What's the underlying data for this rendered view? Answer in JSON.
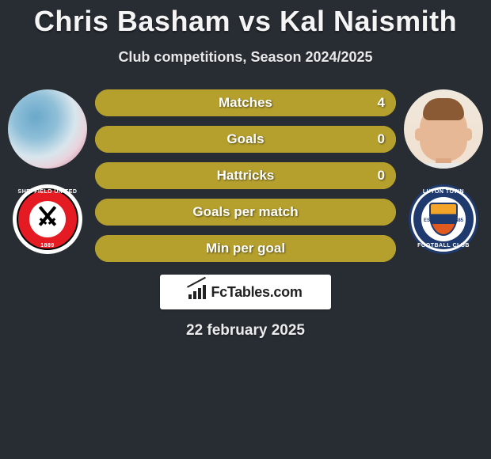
{
  "title": "Chris Basham vs Kal Naismith",
  "subtitle": "Club competitions, Season 2024/2025",
  "date": "22 february 2025",
  "brand": "FcTables.com",
  "colors": {
    "background": "#282d33",
    "bar": "#b5a02e",
    "text": "#ffffff"
  },
  "left": {
    "player_name": "Chris Basham",
    "club_name_top": "SHEFFIELD UNITED",
    "club_name_bottom": "1889",
    "club_colors": {
      "outer": "#ffffff",
      "ring": "#e41b23",
      "inner": "#ffffff",
      "accent": "#000000"
    }
  },
  "right": {
    "player_name": "Kal Naismith",
    "club_name_top": "LUTON TOWN",
    "club_name_bottom": "FOOTBALL CLUB",
    "club_est_left": "EST",
    "club_est_right": "1885",
    "club_colors": {
      "ring": "#1f3a6e",
      "inner": "#ffffff",
      "shield1": "#f4a428",
      "shield2": "#1f3a6e",
      "shield3": "#e05a1f"
    }
  },
  "stats": [
    {
      "label": "Matches",
      "value": "4",
      "fill_pct": 100
    },
    {
      "label": "Goals",
      "value": "0",
      "fill_pct": 100
    },
    {
      "label": "Hattricks",
      "value": "0",
      "fill_pct": 100
    },
    {
      "label": "Goals per match",
      "value": "",
      "fill_pct": 100
    },
    {
      "label": "Min per goal",
      "value": "",
      "fill_pct": 100
    }
  ]
}
